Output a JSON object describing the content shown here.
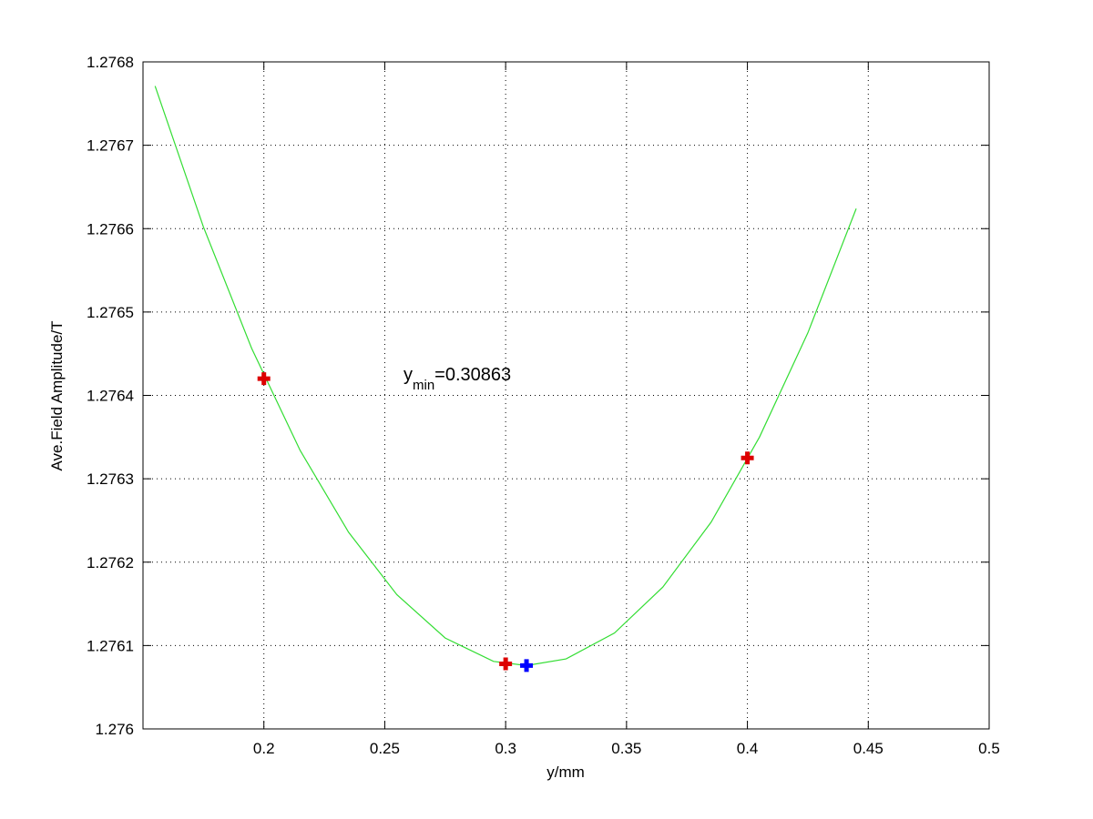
{
  "chart_data": {
    "type": "line",
    "xlabel": "y/mm",
    "ylabel": "Ave.Field Amplitude/T",
    "annotation": {
      "base": "y",
      "sub": "min",
      "rest": "=0.30863"
    },
    "xlim": [
      0.15,
      0.5
    ],
    "xticks": [
      0.2,
      0.25,
      0.3,
      0.35,
      0.4,
      0.45,
      0.5
    ],
    "ylim": [
      1.276,
      1.2768
    ],
    "yticks": [
      1.276,
      1.2761,
      1.2762,
      1.2763,
      1.2764,
      1.2765,
      1.2766,
      1.2767,
      1.2768
    ],
    "grid": true,
    "series": [
      {
        "style": "line",
        "color": "#33dd33",
        "x": [
          0.155,
          0.175,
          0.195,
          0.215,
          0.235,
          0.255,
          0.275,
          0.295,
          0.3086,
          0.325,
          0.345,
          0.365,
          0.385,
          0.405,
          0.425,
          0.445
        ],
        "values": [
          1.276771,
          1.276602,
          1.276456,
          1.276334,
          1.276236,
          1.276161,
          1.276109,
          1.276081,
          1.276076,
          1.276084,
          1.276115,
          1.27617,
          1.276248,
          1.27635,
          1.276475,
          1.276624
        ]
      },
      {
        "style": "marker",
        "color": "#dd0000",
        "x": [
          0.2,
          0.3,
          0.4
        ],
        "values": [
          1.27642,
          1.276078,
          1.276325
        ]
      },
      {
        "style": "marker",
        "color": "#0000ff",
        "x": [
          0.30863
        ],
        "values": [
          1.276076
        ]
      }
    ]
  }
}
